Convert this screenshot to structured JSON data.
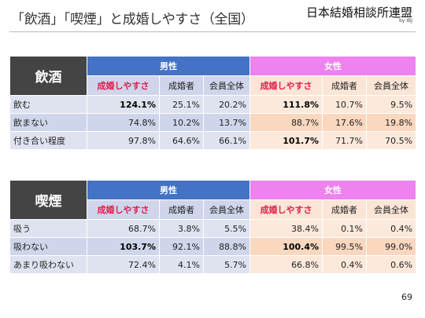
{
  "header": {
    "title": "「飲酒」「喫煙」と成婚しやすさ（全国）",
    "brand": "日本結婚相談所連盟",
    "brand_sub": "by IBJ"
  },
  "page_number": "69",
  "tables": [
    {
      "heading": "飲酒",
      "group_male": "男性",
      "group_female": "女性",
      "columns": [
        "成婚しやすさ",
        "成婚者",
        "会員全体",
        "成婚しやすさ",
        "成婚者",
        "会員全体"
      ],
      "rows": [
        {
          "label": "飲む",
          "values": [
            "124.1%",
            "25.1%",
            "20.2%",
            "111.8%",
            "10.7%",
            "9.5%"
          ]
        },
        {
          "label": "飲まない",
          "values": [
            "74.8%",
            "10.2%",
            "13.7%",
            "88.7%",
            "17.6%",
            "19.8%"
          ]
        },
        {
          "label": "付き合い程度",
          "values": [
            "97.8%",
            "64.6%",
            "66.1%",
            "101.7%",
            "71.7%",
            "70.5%"
          ]
        }
      ]
    },
    {
      "heading": "喫煙",
      "group_male": "男性",
      "group_female": "女性",
      "columns": [
        "成婚しやすさ",
        "成婚者",
        "会員全体",
        "成婚しやすさ",
        "成婚者",
        "会員全体"
      ],
      "rows": [
        {
          "label": "吸う",
          "values": [
            "68.7%",
            "3.8%",
            "5.5%",
            "38.4%",
            "0.1%",
            "0.4%"
          ]
        },
        {
          "label": "吸わない",
          "values": [
            "103.7%",
            "92.1%",
            "88.8%",
            "100.4%",
            "99.5%",
            "99.0%"
          ]
        },
        {
          "label": "あまり吸わない",
          "values": [
            "72.4%",
            "4.1%",
            "5.7%",
            "66.8%",
            "0.4%",
            "0.6%"
          ]
        }
      ]
    }
  ]
}
